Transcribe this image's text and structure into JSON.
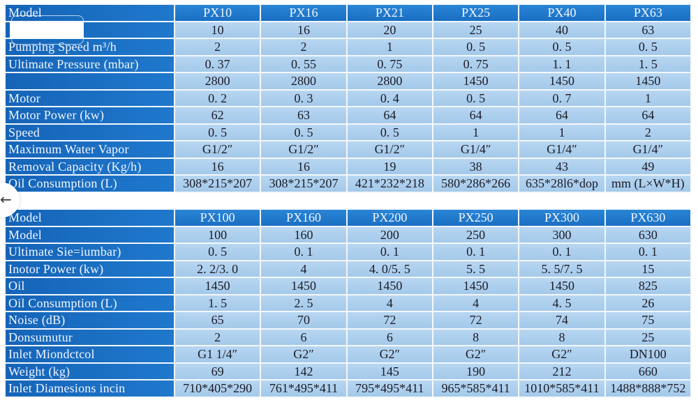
{
  "colors": {
    "label_bg": "#1a6fc2",
    "cell_bg": "#aecfee",
    "border": "#f4f8fc"
  },
  "back_button": {
    "icon": "arrow-left-icon",
    "glyph": "←"
  },
  "table1": {
    "header": {
      "label": "Model",
      "values": [
        "PX10",
        "PX16",
        "PX21",
        "PX25",
        "PX40",
        "PX63"
      ]
    },
    "rows": [
      {
        "label": "",
        "values": [
          "10",
          "16",
          "20",
          "25",
          "40",
          "63"
        ]
      },
      {
        "label": "Pumping Speed m³/h",
        "values": [
          "2",
          "2",
          "1",
          "0. 5",
          "0. 5",
          "0. 5"
        ]
      },
      {
        "label": "Ultimate Pressure (mbar)",
        "values": [
          "0. 37",
          "0. 55",
          "0. 75",
          "0. 75",
          "1. 1",
          "1. 5"
        ]
      },
      {
        "label": "",
        "values": [
          "2800",
          "2800",
          "2800",
          "1450",
          "1450",
          "1450"
        ]
      },
      {
        "label": "Motor",
        "values": [
          "0. 2",
          "0. 3",
          "0. 4",
          "0. 5",
          "0. 7",
          "1"
        ]
      },
      {
        "label": "Motor Power (kw)",
        "values": [
          "62",
          "63",
          "64",
          "64",
          "64",
          "64"
        ]
      },
      {
        "label": "Speed",
        "values": [
          "0. 5",
          "0. 5",
          "0. 5",
          "1",
          "1",
          "2"
        ]
      },
      {
        "label": "Maximum Water Vapor",
        "values": [
          "G1/2″",
          "G1/2″",
          "G1/2″",
          "G1/4″",
          "G1/4″",
          "G1/4″"
        ]
      },
      {
        "label": "Removal Capacity (Kg/h)",
        "values": [
          "16",
          "16",
          "19",
          "38",
          "43",
          "49"
        ]
      },
      {
        "label": "Oil Consumption (L)",
        "values": [
          "308*215*207",
          "308*215*207",
          "421*232*218",
          "580*286*266",
          "635*28l6*dop",
          "mm (L×W*H)"
        ]
      }
    ]
  },
  "table2": {
    "header": {
      "label": "Model",
      "values": [
        "PX100",
        "PX160",
        "PX200",
        "PX250",
        "PX300",
        "PX630"
      ]
    },
    "rows": [
      {
        "label": "Model",
        "values": [
          "100",
          "160",
          "200",
          "250",
          "300",
          "630"
        ]
      },
      {
        "label": "Ultimate Sie=iumbar)",
        "values": [
          "0. 5",
          "0. 1",
          "0. 1",
          "0. 1",
          "0. 1",
          "0. 1"
        ]
      },
      {
        "label": "Inotor Power (kw)",
        "values": [
          "2. 2/3. 0",
          "4",
          "4. 0/5. 5",
          "5. 5",
          "5. 5/7. 5",
          "15"
        ]
      },
      {
        "label": "Oil",
        "values": [
          "1450",
          "1450",
          "1450",
          "1450",
          "1450",
          "825"
        ]
      },
      {
        "label": "Oil Consumption (L)",
        "values": [
          "1. 5",
          "2. 5",
          "4",
          "4",
          "4. 5",
          "26"
        ]
      },
      {
        "label": "Noise (dB)",
        "values": [
          "65",
          "70",
          "72",
          "72",
          "74",
          "75"
        ]
      },
      {
        "label": "Donsumutur",
        "values": [
          "2",
          "6",
          "6",
          "8",
          "8",
          "25"
        ]
      },
      {
        "label": "Inlet Miondctcol",
        "values": [
          "G1  1/4″",
          "G2″",
          "G2″",
          "G2″",
          "G2″",
          "DN100"
        ]
      },
      {
        "label": "Weight (kg)",
        "values": [
          "69",
          "142",
          "145",
          "190",
          "212",
          "660"
        ]
      },
      {
        "label": "Inlet Diamesions incin",
        "values": [
          "710*405*290",
          "761*495*411",
          "795*495*411",
          "965*585*411",
          "1010*585*411",
          "1488*888*752"
        ]
      }
    ]
  }
}
